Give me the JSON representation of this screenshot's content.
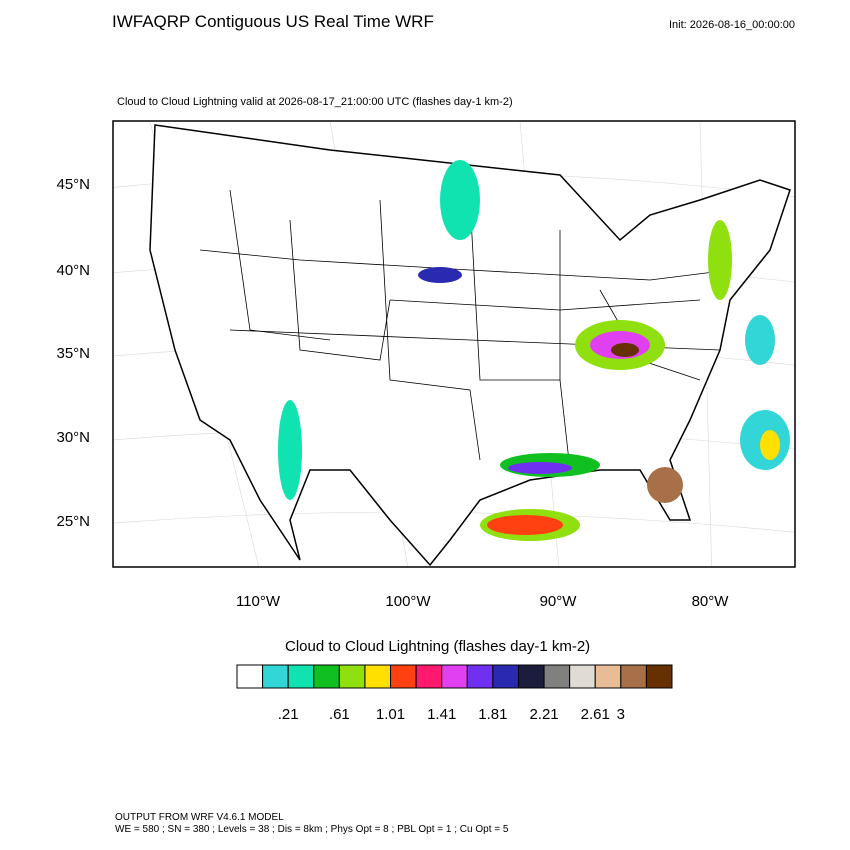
{
  "header": {
    "title": "IWFAQRP Contiguous US Real Time WRF",
    "init": "Init: 2026-08-16_00:00:00"
  },
  "map": {
    "subtitle": "Cloud to Cloud Lightning valid at 2026-08-17_21:00:00 UTC   (flashes day-1 km-2)",
    "lat_labels": [
      "45°N",
      "40°N",
      "35°N",
      "30°N",
      "25°N"
    ],
    "lon_labels": [
      "110°W",
      "100°W",
      "90°W",
      "80°W"
    ]
  },
  "colorbar": {
    "title": "Cloud to Cloud Lightning  (flashes day-1 km-2)",
    "colors": [
      "#ffffff",
      "#33d6d6",
      "#10e3b0",
      "#10c020",
      "#90e010",
      "#ffe000",
      "#ff4010",
      "#ff1a70",
      "#e040f0",
      "#7030f0",
      "#2a2ab0",
      "#1c1c3c",
      "#808080",
      "#e0dcd4",
      "#e8bc94",
      "#a87048",
      "#663000"
    ],
    "labels": [
      ".21",
      ".61",
      "1.01",
      "1.41",
      "1.81",
      "2.21",
      "2.61",
      "3"
    ]
  },
  "footer": {
    "line1": "OUTPUT FROM WRF V4.6.1 MODEL",
    "line2": "WE = 580 ; SN = 380 ; Levels = 38 ; Dis = 8km ; Phys Opt = 8 ; PBL Opt = 1 ; Cu Opt = 5"
  }
}
